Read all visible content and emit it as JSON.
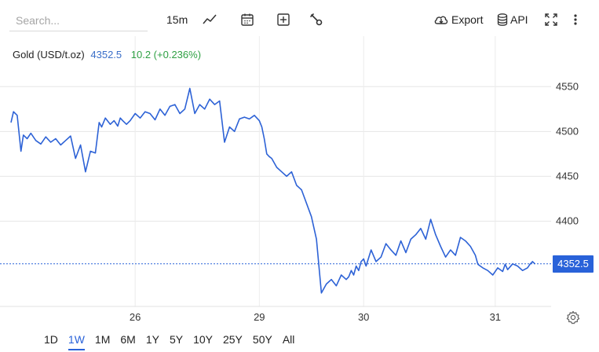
{
  "toolbar": {
    "search_placeholder": "Search...",
    "interval": "15m",
    "export_label": "Export",
    "api_label": "API",
    "icons": [
      "line-chart-icon",
      "calendar-icon",
      "plus-box-icon",
      "wrench-icon",
      "cloud-download-icon",
      "database-icon",
      "fullscreen-icon",
      "more-vertical-icon"
    ]
  },
  "legend": {
    "symbol": "Gold (USD/t.oz)",
    "price": "4352.5",
    "change": "10.2 (+0.236%)"
  },
  "price_badge": "4352.5",
  "ranges": [
    {
      "label": "1D",
      "active": false
    },
    {
      "label": "1W",
      "active": true
    },
    {
      "label": "1M",
      "active": false
    },
    {
      "label": "6M",
      "active": false
    },
    {
      "label": "1Y",
      "active": false
    },
    {
      "label": "5Y",
      "active": false
    },
    {
      "label": "10Y",
      "active": false
    },
    {
      "label": "25Y",
      "active": false
    },
    {
      "label": "50Y",
      "active": false
    },
    {
      "label": "All",
      "active": false
    }
  ],
  "chart_data": {
    "type": "line",
    "title": "",
    "xlabel": "",
    "ylabel": "",
    "y_ticks": [
      "4550",
      "4500",
      "4450",
      "4400"
    ],
    "ylim": [
      4305,
      4580
    ],
    "x_ticks": [
      "26",
      "29",
      "30",
      "31"
    ],
    "x_tick_positions": [
      1.0,
      2.0,
      2.84,
      3.9
    ],
    "xlim": [
      0.0,
      4.35
    ],
    "line_color": "#2d62d6",
    "grid": true,
    "last_price": 4352.5,
    "series": [
      {
        "x": [
          0.0,
          0.02,
          0.05,
          0.08,
          0.1,
          0.13,
          0.16,
          0.2,
          0.24,
          0.28,
          0.32,
          0.36,
          0.4,
          0.44,
          0.48,
          0.52,
          0.56,
          0.6,
          0.64,
          0.68,
          0.71,
          0.73,
          0.76,
          0.8,
          0.83,
          0.86,
          0.88,
          0.9,
          0.93,
          0.96,
          1.0,
          1.04,
          1.08,
          1.12,
          1.16,
          1.2,
          1.24,
          1.28,
          1.32,
          1.36,
          1.4,
          1.44,
          1.48,
          1.52,
          1.56,
          1.6,
          1.64,
          1.68,
          1.72,
          1.76,
          1.8,
          1.84,
          1.88,
          1.92,
          1.96,
          2.0,
          2.02,
          2.04,
          2.06,
          2.08,
          2.1,
          2.14,
          2.18,
          2.22,
          2.26,
          2.3,
          2.34,
          2.38,
          2.42,
          2.46,
          2.5,
          2.54,
          2.58,
          2.62,
          2.66,
          2.7,
          2.72,
          2.74,
          2.76,
          2.78,
          2.8,
          2.82,
          2.84,
          2.86,
          2.9,
          2.94,
          2.98,
          3.02,
          3.06,
          3.1,
          3.14,
          3.18,
          3.22,
          3.26,
          3.3,
          3.34,
          3.38,
          3.42,
          3.46,
          3.5,
          3.54,
          3.58,
          3.62,
          3.66,
          3.7,
          3.74,
          3.76,
          3.78,
          3.8,
          3.84,
          3.88,
          3.92,
          3.96,
          3.98,
          4.0,
          4.04,
          4.08,
          4.12,
          4.16,
          4.18,
          4.2,
          4.22
        ],
        "y": [
          4510,
          4522,
          4518,
          4478,
          4496,
          4492,
          4498,
          4490,
          4486,
          4494,
          4488,
          4492,
          4485,
          4490,
          4495,
          4470,
          4485,
          4455,
          4478,
          4476,
          4510,
          4505,
          4515,
          4508,
          4512,
          4506,
          4515,
          4512,
          4508,
          4512,
          4520,
          4515,
          4522,
          4520,
          4513,
          4525,
          4518,
          4528,
          4530,
          4520,
          4525,
          4548,
          4520,
          4530,
          4525,
          4536,
          4530,
          4534,
          4488,
          4505,
          4500,
          4514,
          4516,
          4514,
          4518,
          4512,
          4505,
          4492,
          4475,
          4472,
          4470,
          4460,
          4455,
          4450,
          4455,
          4440,
          4435,
          4420,
          4405,
          4380,
          4320,
          4330,
          4335,
          4328,
          4340,
          4335,
          4338,
          4345,
          4340,
          4350,
          4345,
          4355,
          4358,
          4350,
          4368,
          4355,
          4360,
          4375,
          4368,
          4362,
          4378,
          4365,
          4380,
          4385,
          4392,
          4380,
          4402,
          4385,
          4372,
          4360,
          4368,
          4362,
          4382,
          4378,
          4372,
          4362,
          4352,
          4350,
          4348,
          4345,
          4340,
          4348,
          4344,
          4352,
          4346,
          4352.5,
          4350,
          4345,
          4348,
          4352,
          4355,
          4352.5
        ]
      }
    ]
  }
}
